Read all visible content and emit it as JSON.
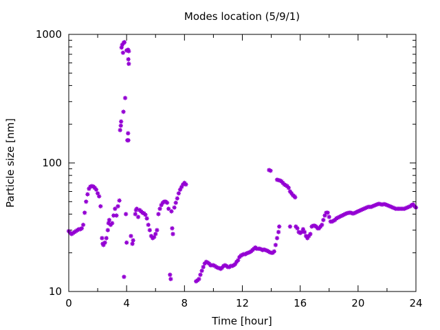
{
  "chart_data": {
    "type": "scatter",
    "title": "Modes location (5/9/1)",
    "xlabel": "Time [hour]",
    "ylabel": "Particle size [nm]",
    "xlim": [
      0,
      24
    ],
    "ylim": [
      10,
      1000
    ],
    "yscale": "log",
    "grid": false,
    "legend": "none",
    "marker_color": "#9400d3",
    "x_ticks": [
      0,
      4,
      8,
      12,
      16,
      20,
      24
    ],
    "x_tick_labels": [
      "0",
      "4",
      "8",
      "12",
      "16",
      "20",
      "24"
    ],
    "y_ticks": [
      10,
      100,
      1000
    ],
    "y_tick_labels": [
      "10",
      "100",
      "1000"
    ],
    "series": [
      {
        "points": [
          [
            0.0,
            29.5
          ],
          [
            0.1,
            28.5
          ],
          [
            0.2,
            28
          ],
          [
            0.3,
            28.5
          ],
          [
            0.4,
            29
          ],
          [
            0.5,
            29.5
          ],
          [
            0.6,
            30
          ],
          [
            0.7,
            30.5
          ],
          [
            0.8,
            30.5
          ],
          [
            0.9,
            31
          ],
          [
            1.0,
            33
          ],
          [
            1.1,
            41
          ],
          [
            1.2,
            50
          ],
          [
            1.3,
            57
          ],
          [
            1.4,
            63
          ],
          [
            1.5,
            65.5
          ],
          [
            1.6,
            66
          ],
          [
            1.7,
            65.5
          ],
          [
            1.8,
            64
          ],
          [
            1.9,
            62
          ],
          [
            2.0,
            58
          ],
          [
            2.1,
            55
          ],
          [
            2.2,
            46
          ],
          [
            2.3,
            26
          ],
          [
            2.35,
            23.5
          ],
          [
            2.4,
            23
          ],
          [
            2.5,
            24
          ],
          [
            2.6,
            26
          ],
          [
            2.7,
            30
          ],
          [
            2.75,
            34
          ],
          [
            2.8,
            36
          ],
          [
            2.9,
            33
          ],
          [
            3.0,
            34
          ],
          [
            3.1,
            39
          ],
          [
            3.2,
            44
          ],
          [
            3.3,
            39
          ],
          [
            3.4,
            46
          ],
          [
            3.5,
            51
          ],
          [
            3.55,
            180
          ],
          [
            3.6,
            195
          ],
          [
            3.62,
            210
          ],
          [
            3.65,
            790
          ],
          [
            3.7,
            830
          ],
          [
            3.75,
            720
          ],
          [
            3.8,
            860
          ],
          [
            3.85,
            870
          ],
          [
            3.78,
            250
          ],
          [
            3.82,
            13
          ],
          [
            3.9,
            320
          ],
          [
            3.95,
            40
          ],
          [
            4.0,
            24
          ],
          [
            4.05,
            150
          ],
          [
            4.1,
            170
          ],
          [
            4.12,
            150
          ],
          [
            4.1,
            760
          ],
          [
            4.15,
            740
          ],
          [
            4.0,
            750
          ],
          [
            4.12,
            640
          ],
          [
            4.15,
            590
          ],
          [
            4.3,
            27
          ],
          [
            4.4,
            23.5
          ],
          [
            4.45,
            25
          ],
          [
            4.6,
            40
          ],
          [
            4.65,
            43
          ],
          [
            4.7,
            44
          ],
          [
            4.8,
            38
          ],
          [
            4.9,
            43
          ],
          [
            5.0,
            42
          ],
          [
            5.1,
            41
          ],
          [
            5.2,
            40.5
          ],
          [
            5.3,
            39.5
          ],
          [
            5.4,
            37
          ],
          [
            5.5,
            33
          ],
          [
            5.6,
            30
          ],
          [
            5.7,
            27
          ],
          [
            5.8,
            26
          ],
          [
            5.9,
            26.5
          ],
          [
            6.0,
            28
          ],
          [
            6.1,
            30
          ],
          [
            6.2,
            40
          ],
          [
            6.3,
            44
          ],
          [
            6.4,
            47
          ],
          [
            6.5,
            49
          ],
          [
            6.6,
            50
          ],
          [
            6.7,
            50
          ],
          [
            6.8,
            49
          ],
          [
            6.9,
            44
          ],
          [
            7.0,
            13.5
          ],
          [
            7.05,
            12.5
          ],
          [
            7.1,
            42
          ],
          [
            7.15,
            31
          ],
          [
            7.2,
            28
          ],
          [
            7.3,
            45
          ],
          [
            7.4,
            49
          ],
          [
            7.5,
            53
          ],
          [
            7.6,
            58
          ],
          [
            7.7,
            62
          ],
          [
            7.8,
            65
          ],
          [
            7.9,
            68
          ],
          [
            8.0,
            70
          ],
          [
            8.1,
            68
          ],
          [
            8.8,
            12
          ],
          [
            8.9,
            12.2
          ],
          [
            9.0,
            12.5
          ],
          [
            9.1,
            13.5
          ],
          [
            9.2,
            14.5
          ],
          [
            9.3,
            15.5
          ],
          [
            9.4,
            16.5
          ],
          [
            9.5,
            17
          ],
          [
            9.6,
            16.8
          ],
          [
            9.7,
            16.5
          ],
          [
            9.8,
            16
          ],
          [
            9.9,
            16
          ],
          [
            10.0,
            16
          ],
          [
            10.1,
            15.8
          ],
          [
            10.2,
            15.5
          ],
          [
            10.3,
            15.3
          ],
          [
            10.4,
            15.2
          ],
          [
            10.5,
            15
          ],
          [
            10.6,
            15.3
          ],
          [
            10.7,
            15.8
          ],
          [
            10.8,
            16
          ],
          [
            10.9,
            15.8
          ],
          [
            11.0,
            15.5
          ],
          [
            11.1,
            15.5
          ],
          [
            11.2,
            15.8
          ],
          [
            11.3,
            15.8
          ],
          [
            11.4,
            16
          ],
          [
            11.5,
            16.3
          ],
          [
            11.6,
            17
          ],
          [
            11.7,
            17.5
          ],
          [
            11.8,
            18.5
          ],
          [
            11.9,
            19
          ],
          [
            12.0,
            19.3
          ],
          [
            12.1,
            19.5
          ],
          [
            12.2,
            19.5
          ],
          [
            12.3,
            19.8
          ],
          [
            12.4,
            20
          ],
          [
            12.5,
            20.2
          ],
          [
            12.6,
            20.5
          ],
          [
            12.7,
            21
          ],
          [
            12.8,
            21.5
          ],
          [
            12.9,
            22
          ],
          [
            13.0,
            21.5
          ],
          [
            13.1,
            21.5
          ],
          [
            13.2,
            21.5
          ],
          [
            13.3,
            21.3
          ],
          [
            13.4,
            21
          ],
          [
            13.5,
            21.2
          ],
          [
            13.6,
            21
          ],
          [
            13.7,
            20.8
          ],
          [
            13.8,
            20.5
          ],
          [
            13.9,
            20.2
          ],
          [
            14.0,
            20
          ],
          [
            14.1,
            20
          ],
          [
            14.2,
            20.5
          ],
          [
            14.3,
            23
          ],
          [
            14.4,
            26
          ],
          [
            14.5,
            29
          ],
          [
            14.55,
            32
          ],
          [
            13.85,
            88
          ],
          [
            13.95,
            87
          ],
          [
            14.4,
            74
          ],
          [
            14.5,
            73.5
          ],
          [
            14.6,
            73
          ],
          [
            14.7,
            72
          ],
          [
            14.8,
            70
          ],
          [
            14.9,
            68
          ],
          [
            15.0,
            67
          ],
          [
            15.1,
            66
          ],
          [
            15.2,
            64
          ],
          [
            15.3,
            60
          ],
          [
            15.4,
            58
          ],
          [
            15.5,
            56
          ],
          [
            15.6,
            55
          ],
          [
            15.65,
            54
          ],
          [
            15.3,
            32
          ],
          [
            15.7,
            32
          ],
          [
            15.8,
            31
          ],
          [
            15.9,
            29
          ],
          [
            16.0,
            28.5
          ],
          [
            16.1,
            29
          ],
          [
            16.2,
            30.5
          ],
          [
            16.3,
            29
          ],
          [
            16.4,
            27
          ],
          [
            16.5,
            26
          ],
          [
            16.6,
            27
          ],
          [
            16.7,
            28
          ],
          [
            16.8,
            32
          ],
          [
            16.9,
            32.5
          ],
          [
            17.0,
            32.5
          ],
          [
            17.1,
            32
          ],
          [
            17.2,
            31
          ],
          [
            17.3,
            31
          ],
          [
            17.4,
            32
          ],
          [
            17.5,
            33
          ],
          [
            17.6,
            36
          ],
          [
            17.7,
            39
          ],
          [
            17.8,
            41
          ],
          [
            17.9,
            41
          ],
          [
            18.0,
            38
          ],
          [
            18.1,
            35
          ],
          [
            18.2,
            35
          ],
          [
            18.3,
            35.5
          ],
          [
            18.4,
            36
          ],
          [
            18.5,
            37
          ],
          [
            18.6,
            37.5
          ],
          [
            18.7,
            38
          ],
          [
            18.8,
            38.5
          ],
          [
            18.9,
            39
          ],
          [
            19.0,
            39.5
          ],
          [
            19.1,
            40
          ],
          [
            19.2,
            40.5
          ],
          [
            19.3,
            40.8
          ],
          [
            19.4,
            41
          ],
          [
            19.5,
            41
          ],
          [
            19.6,
            40.5
          ],
          [
            19.7,
            40.5
          ],
          [
            19.8,
            41
          ],
          [
            19.9,
            41.5
          ],
          [
            20.0,
            42
          ],
          [
            20.1,
            42.5
          ],
          [
            20.2,
            43
          ],
          [
            20.3,
            43.5
          ],
          [
            20.4,
            44
          ],
          [
            20.5,
            44.5
          ],
          [
            20.6,
            45
          ],
          [
            20.7,
            45.5
          ],
          [
            20.8,
            45.5
          ],
          [
            20.9,
            45.5
          ],
          [
            21.0,
            46
          ],
          [
            21.1,
            46.5
          ],
          [
            21.2,
            47
          ],
          [
            21.3,
            47.5
          ],
          [
            21.4,
            48
          ],
          [
            21.5,
            48
          ],
          [
            21.6,
            47.5
          ],
          [
            21.7,
            47.5
          ],
          [
            21.8,
            47.8
          ],
          [
            21.9,
            47.5
          ],
          [
            22.0,
            47
          ],
          [
            22.1,
            46.5
          ],
          [
            22.2,
            46
          ],
          [
            22.3,
            45.5
          ],
          [
            22.4,
            45
          ],
          [
            22.5,
            44.5
          ],
          [
            22.6,
            44
          ],
          [
            22.7,
            44
          ],
          [
            22.8,
            44
          ],
          [
            22.9,
            44
          ],
          [
            23.0,
            44
          ],
          [
            23.1,
            44
          ],
          [
            23.2,
            44
          ],
          [
            23.3,
            44.5
          ],
          [
            23.4,
            45
          ],
          [
            23.5,
            45.5
          ],
          [
            23.6,
            46
          ],
          [
            23.7,
            47
          ],
          [
            23.8,
            47.5
          ],
          [
            23.9,
            46
          ],
          [
            24.0,
            45
          ]
        ]
      }
    ]
  }
}
